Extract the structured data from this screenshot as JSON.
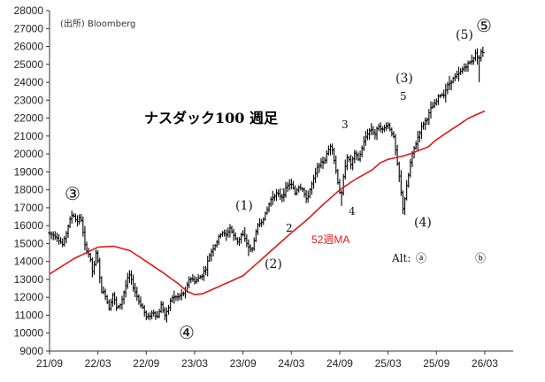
{
  "chart_data": {
    "type": "bar",
    "title": "ナスダック100 週足",
    "source": "(出所) Bloomberg",
    "xlabel": "",
    "ylabel": "",
    "ylim": [
      9000,
      28000
    ],
    "y_ticks": [
      9000,
      10000,
      11000,
      12000,
      13000,
      14000,
      15000,
      16000,
      17000,
      18000,
      19000,
      20000,
      21000,
      22000,
      23000,
      24000,
      25000,
      26000,
      27000,
      28000
    ],
    "x_ticks": [
      "21/09",
      "22/03",
      "22/09",
      "23/03",
      "23/09",
      "24/03",
      "24/09",
      "25/03",
      "25/09",
      "26/03"
    ],
    "x_tick_months": [
      0,
      6,
      12,
      18,
      24,
      30,
      36,
      42,
      48,
      54
    ],
    "grid": false,
    "series": [
      {
        "name": "",
        "style": "ohlc",
        "color": "#000000",
        "anchors": [
          [
            0.0,
            15600
          ],
          [
            1.1,
            15400
          ],
          [
            1.9,
            14900
          ],
          [
            2.6,
            16100
          ],
          [
            3.1,
            16700
          ],
          [
            3.6,
            16200
          ],
          [
            4.1,
            16500
          ],
          [
            4.6,
            14900
          ],
          [
            5.2,
            14300
          ],
          [
            5.6,
            13300
          ],
          [
            6.1,
            14700
          ],
          [
            6.6,
            12400
          ],
          [
            7.1,
            12200
          ],
          [
            7.6,
            11400
          ],
          [
            8.1,
            12200
          ],
          [
            8.6,
            11300
          ],
          [
            9.1,
            11700
          ],
          [
            10.1,
            13300
          ],
          [
            10.6,
            12600
          ],
          [
            11.3,
            11800
          ],
          [
            11.8,
            11400
          ],
          [
            12.3,
            10800
          ],
          [
            13.1,
            11200
          ],
          [
            13.6,
            10900
          ],
          [
            14.1,
            11600
          ],
          [
            14.6,
            10900
          ],
          [
            15.4,
            12000
          ],
          [
            16.1,
            12000
          ],
          [
            17.1,
            12300
          ],
          [
            17.6,
            13100
          ],
          [
            18.3,
            12900
          ],
          [
            19.1,
            13200
          ],
          [
            19.6,
            13600
          ],
          [
            20.1,
            14400
          ],
          [
            21.1,
            15200
          ],
          [
            21.6,
            15700
          ],
          [
            22.1,
            15400
          ],
          [
            22.6,
            15900
          ],
          [
            23.1,
            15400
          ],
          [
            23.6,
            15100
          ],
          [
            24.1,
            15600
          ],
          [
            24.6,
            15100
          ],
          [
            25.3,
            14500
          ],
          [
            25.6,
            15200
          ],
          [
            26.1,
            16000
          ],
          [
            26.6,
            16300
          ],
          [
            27.1,
            16700
          ],
          [
            27.6,
            17400
          ],
          [
            28.3,
            17800
          ],
          [
            29.1,
            17600
          ],
          [
            29.6,
            18100
          ],
          [
            30.1,
            18400
          ],
          [
            30.7,
            17800
          ],
          [
            31.1,
            18200
          ],
          [
            31.6,
            18100
          ],
          [
            32.1,
            17400
          ],
          [
            32.6,
            18100
          ],
          [
            33.1,
            18700
          ],
          [
            33.6,
            19400
          ],
          [
            34.3,
            19600
          ],
          [
            34.9,
            20300
          ],
          [
            35.2,
            20600
          ],
          [
            35.6,
            19500
          ],
          [
            36.1,
            18200
          ],
          [
            36.4,
            17500
          ],
          [
            36.7,
            18700
          ],
          [
            37.1,
            19900
          ],
          [
            37.6,
            19400
          ],
          [
            38.1,
            20000
          ],
          [
            38.6,
            19700
          ],
          [
            39.1,
            20500
          ],
          [
            39.6,
            21100
          ],
          [
            40.1,
            21400
          ],
          [
            40.6,
            21100
          ],
          [
            41.1,
            21600
          ],
          [
            41.6,
            21300
          ],
          [
            42.1,
            21700
          ],
          [
            42.6,
            21300
          ],
          [
            43.0,
            20800
          ],
          [
            43.3,
            19600
          ],
          [
            43.6,
            18800
          ],
          [
            43.9,
            17600
          ],
          [
            44.1,
            16900
          ],
          [
            44.4,
            17800
          ],
          [
            44.7,
            18600
          ],
          [
            45.0,
            19500
          ],
          [
            45.3,
            20100
          ],
          [
            45.7,
            20600
          ],
          [
            46.1,
            21200
          ],
          [
            46.6,
            21700
          ],
          [
            47.1,
            22000
          ],
          [
            47.6,
            22600
          ],
          [
            48.1,
            22800
          ],
          [
            48.6,
            23300
          ],
          [
            49.1,
            23300
          ],
          [
            49.6,
            23800
          ],
          [
            50.1,
            24100
          ],
          [
            50.6,
            24300
          ],
          [
            51.1,
            24500
          ],
          [
            51.6,
            24800
          ],
          [
            52.1,
            25000
          ],
          [
            52.6,
            25200
          ],
          [
            53.1,
            25600
          ],
          [
            53.5,
            25300
          ],
          [
            53.8,
            25700
          ]
        ],
        "spikes": {
          "24.6": 14300,
          "36.2": 17100,
          "44.0": 16600,
          "53.3": 24000
        }
      },
      {
        "name": "52週MA",
        "style": "line",
        "color": "#e01818",
        "anchors": [
          [
            0.0,
            13300
          ],
          [
            3.0,
            14150
          ],
          [
            6.0,
            14800
          ],
          [
            8.0,
            14850
          ],
          [
            10.0,
            14600
          ],
          [
            12.0,
            14000
          ],
          [
            14.0,
            13400
          ],
          [
            16.0,
            12750
          ],
          [
            17.0,
            12350
          ],
          [
            18.0,
            12150
          ],
          [
            19.0,
            12200
          ],
          [
            20.5,
            12500
          ],
          [
            22.0,
            12800
          ],
          [
            24.0,
            13200
          ],
          [
            26.0,
            14000
          ],
          [
            28.0,
            14800
          ],
          [
            30.0,
            15600
          ],
          [
            32.0,
            16350
          ],
          [
            34.0,
            17200
          ],
          [
            36.0,
            18000
          ],
          [
            38.0,
            18600
          ],
          [
            40.0,
            19100
          ],
          [
            41.0,
            19500
          ],
          [
            42.0,
            19700
          ],
          [
            43.0,
            19800
          ],
          [
            44.0,
            19900
          ],
          [
            45.0,
            20050
          ],
          [
            47.0,
            20400
          ],
          [
            48.0,
            20800
          ],
          [
            50.0,
            21400
          ],
          [
            52.0,
            22000
          ],
          [
            54.0,
            22400
          ]
        ]
      }
    ],
    "annotations": {
      "ma_label": "52週MA",
      "waves": {
        "c3": "③",
        "c4": "④",
        "c5": "⑤",
        "p1": "(1)",
        "p2": "(2)",
        "p3": "(3)",
        "p4": "(4)",
        "p5": "(5)",
        "s1": "1",
        "s2": "2",
        "s3": "3",
        "s4": "4",
        "s5": "5"
      },
      "alt": {
        "label": "Alt:",
        "a": "ⓐ",
        "b": "ⓑ"
      }
    }
  }
}
